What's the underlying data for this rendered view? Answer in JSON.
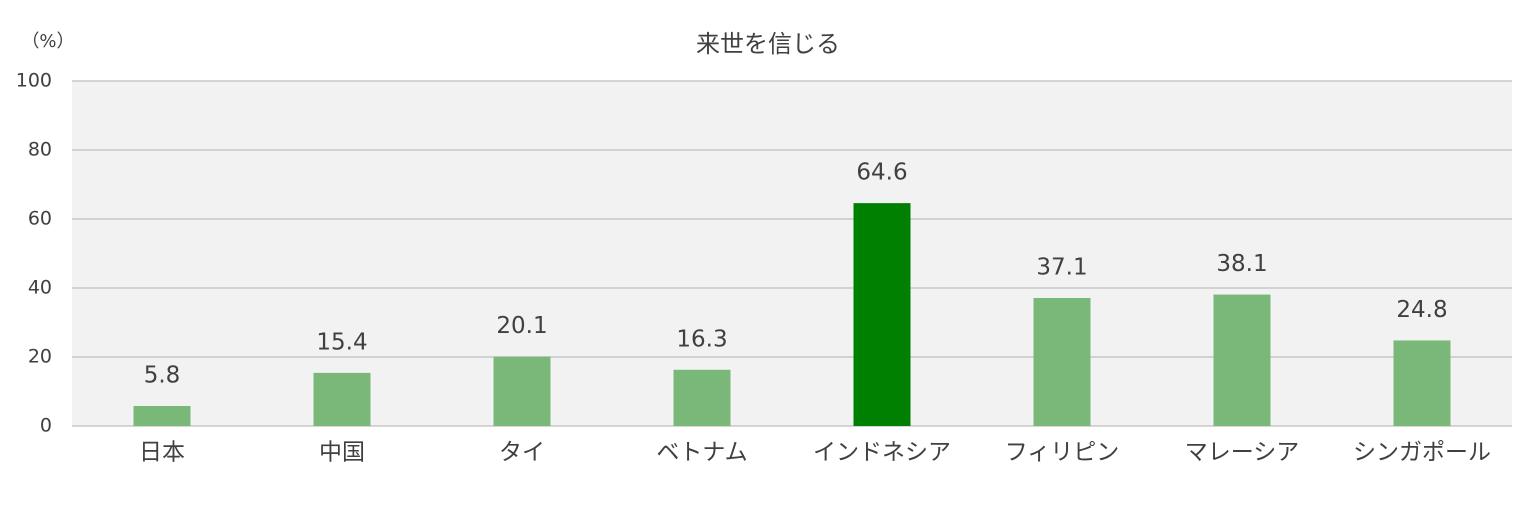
{
  "chart_data": {
    "type": "bar",
    "title": "来世を信じる",
    "y_unit_label": "（%）",
    "categories": [
      "日本",
      "中国",
      "タイ",
      "ベトナム",
      "インドネシア",
      "フィリピン",
      "マレーシア",
      "シンガポール"
    ],
    "values": [
      5.8,
      15.4,
      20.1,
      16.3,
      64.6,
      37.1,
      38.1,
      24.8
    ],
    "colors": [
      "#7ab87a",
      "#7ab87a",
      "#7ab87a",
      "#7ab87a",
      "#008000",
      "#7ab87a",
      "#7ab87a",
      "#7ab87a"
    ],
    "ylim": [
      0,
      100
    ],
    "yticks": [
      0,
      20,
      40,
      60,
      80,
      100
    ],
    "grid": true
  }
}
